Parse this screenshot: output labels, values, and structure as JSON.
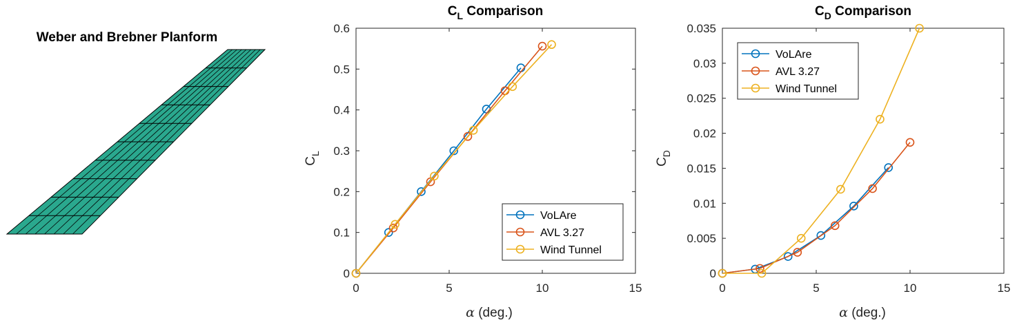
{
  "planform": {
    "title": "Weber and Brebner Planform",
    "fill_color": "#2aa88e",
    "edge_color": "#000000"
  },
  "colors": {
    "series": [
      "#0072BD",
      "#D95319",
      "#EDB120"
    ]
  },
  "chart_data": [
    {
      "id": "cl",
      "type": "line",
      "title": {
        "main": "C",
        "sub": "L",
        "rest": " Comparison"
      },
      "xlabel": {
        "sym": "α",
        "rest": " (deg.)"
      },
      "ylabel": {
        "main": "C",
        "sub": "L"
      },
      "xlim": [
        0,
        15
      ],
      "ylim": [
        0,
        0.6
      ],
      "xticks": [
        0,
        5,
        10,
        15
      ],
      "xtick_labels": [
        "0",
        "5",
        "10",
        "15"
      ],
      "yticks": [
        0,
        0.1,
        0.2,
        0.3,
        0.4,
        0.5,
        0.6
      ],
      "ytick_labels": [
        "0",
        "0.1",
        "0.2",
        "0.3",
        "0.4",
        "0.5",
        "0.6"
      ],
      "legend_position": "bottom-right",
      "series": [
        {
          "name": "VoLAre",
          "x": [
            0,
            1.75,
            3.5,
            5.25,
            7.0,
            8.85
          ],
          "y": [
            0,
            0.1,
            0.2,
            0.3,
            0.402,
            0.503
          ]
        },
        {
          "name": "AVL 3.27",
          "x": [
            0,
            2.0,
            4.0,
            6.0,
            8.0,
            10.0
          ],
          "y": [
            0,
            0.111,
            0.224,
            0.335,
            0.447,
            0.556
          ]
        },
        {
          "name": "Wind Tunnel",
          "x": [
            0,
            2.1,
            4.2,
            6.3,
            8.4,
            10.5
          ],
          "y": [
            0,
            0.12,
            0.238,
            0.35,
            0.457,
            0.56
          ]
        }
      ]
    },
    {
      "id": "cd",
      "type": "line",
      "title": {
        "main": "C",
        "sub": "D",
        "rest": " Comparison"
      },
      "xlabel": {
        "sym": "α",
        "rest": " (deg.)"
      },
      "ylabel": {
        "main": "C",
        "sub": "D"
      },
      "xlim": [
        0,
        15
      ],
      "ylim": [
        0,
        0.035
      ],
      "xticks": [
        0,
        5,
        10,
        15
      ],
      "xtick_labels": [
        "0",
        "5",
        "10",
        "15"
      ],
      "yticks": [
        0,
        0.005,
        0.01,
        0.015,
        0.02,
        0.025,
        0.03,
        0.035
      ],
      "ytick_labels": [
        "0",
        "0.005",
        "0.01",
        "0.015",
        "0.02",
        "0.025",
        "0.03",
        "0.035"
      ],
      "legend_position": "top-left",
      "series": [
        {
          "name": "VoLAre",
          "x": [
            0,
            1.75,
            3.5,
            5.25,
            7.0,
            8.85
          ],
          "y": [
            0,
            0.0006,
            0.0024,
            0.0054,
            0.0096,
            0.0151
          ]
        },
        {
          "name": "AVL 3.27",
          "x": [
            0,
            2.0,
            4.0,
            6.0,
            8.0,
            10.0
          ],
          "y": [
            0,
            0.0007,
            0.003,
            0.0068,
            0.0121,
            0.0187
          ]
        },
        {
          "name": "Wind Tunnel",
          "x": [
            0,
            2.1,
            4.2,
            6.3,
            8.4,
            10.5
          ],
          "y": [
            0,
            0,
            0.005,
            0.012,
            0.022,
            0.035
          ]
        }
      ]
    }
  ]
}
